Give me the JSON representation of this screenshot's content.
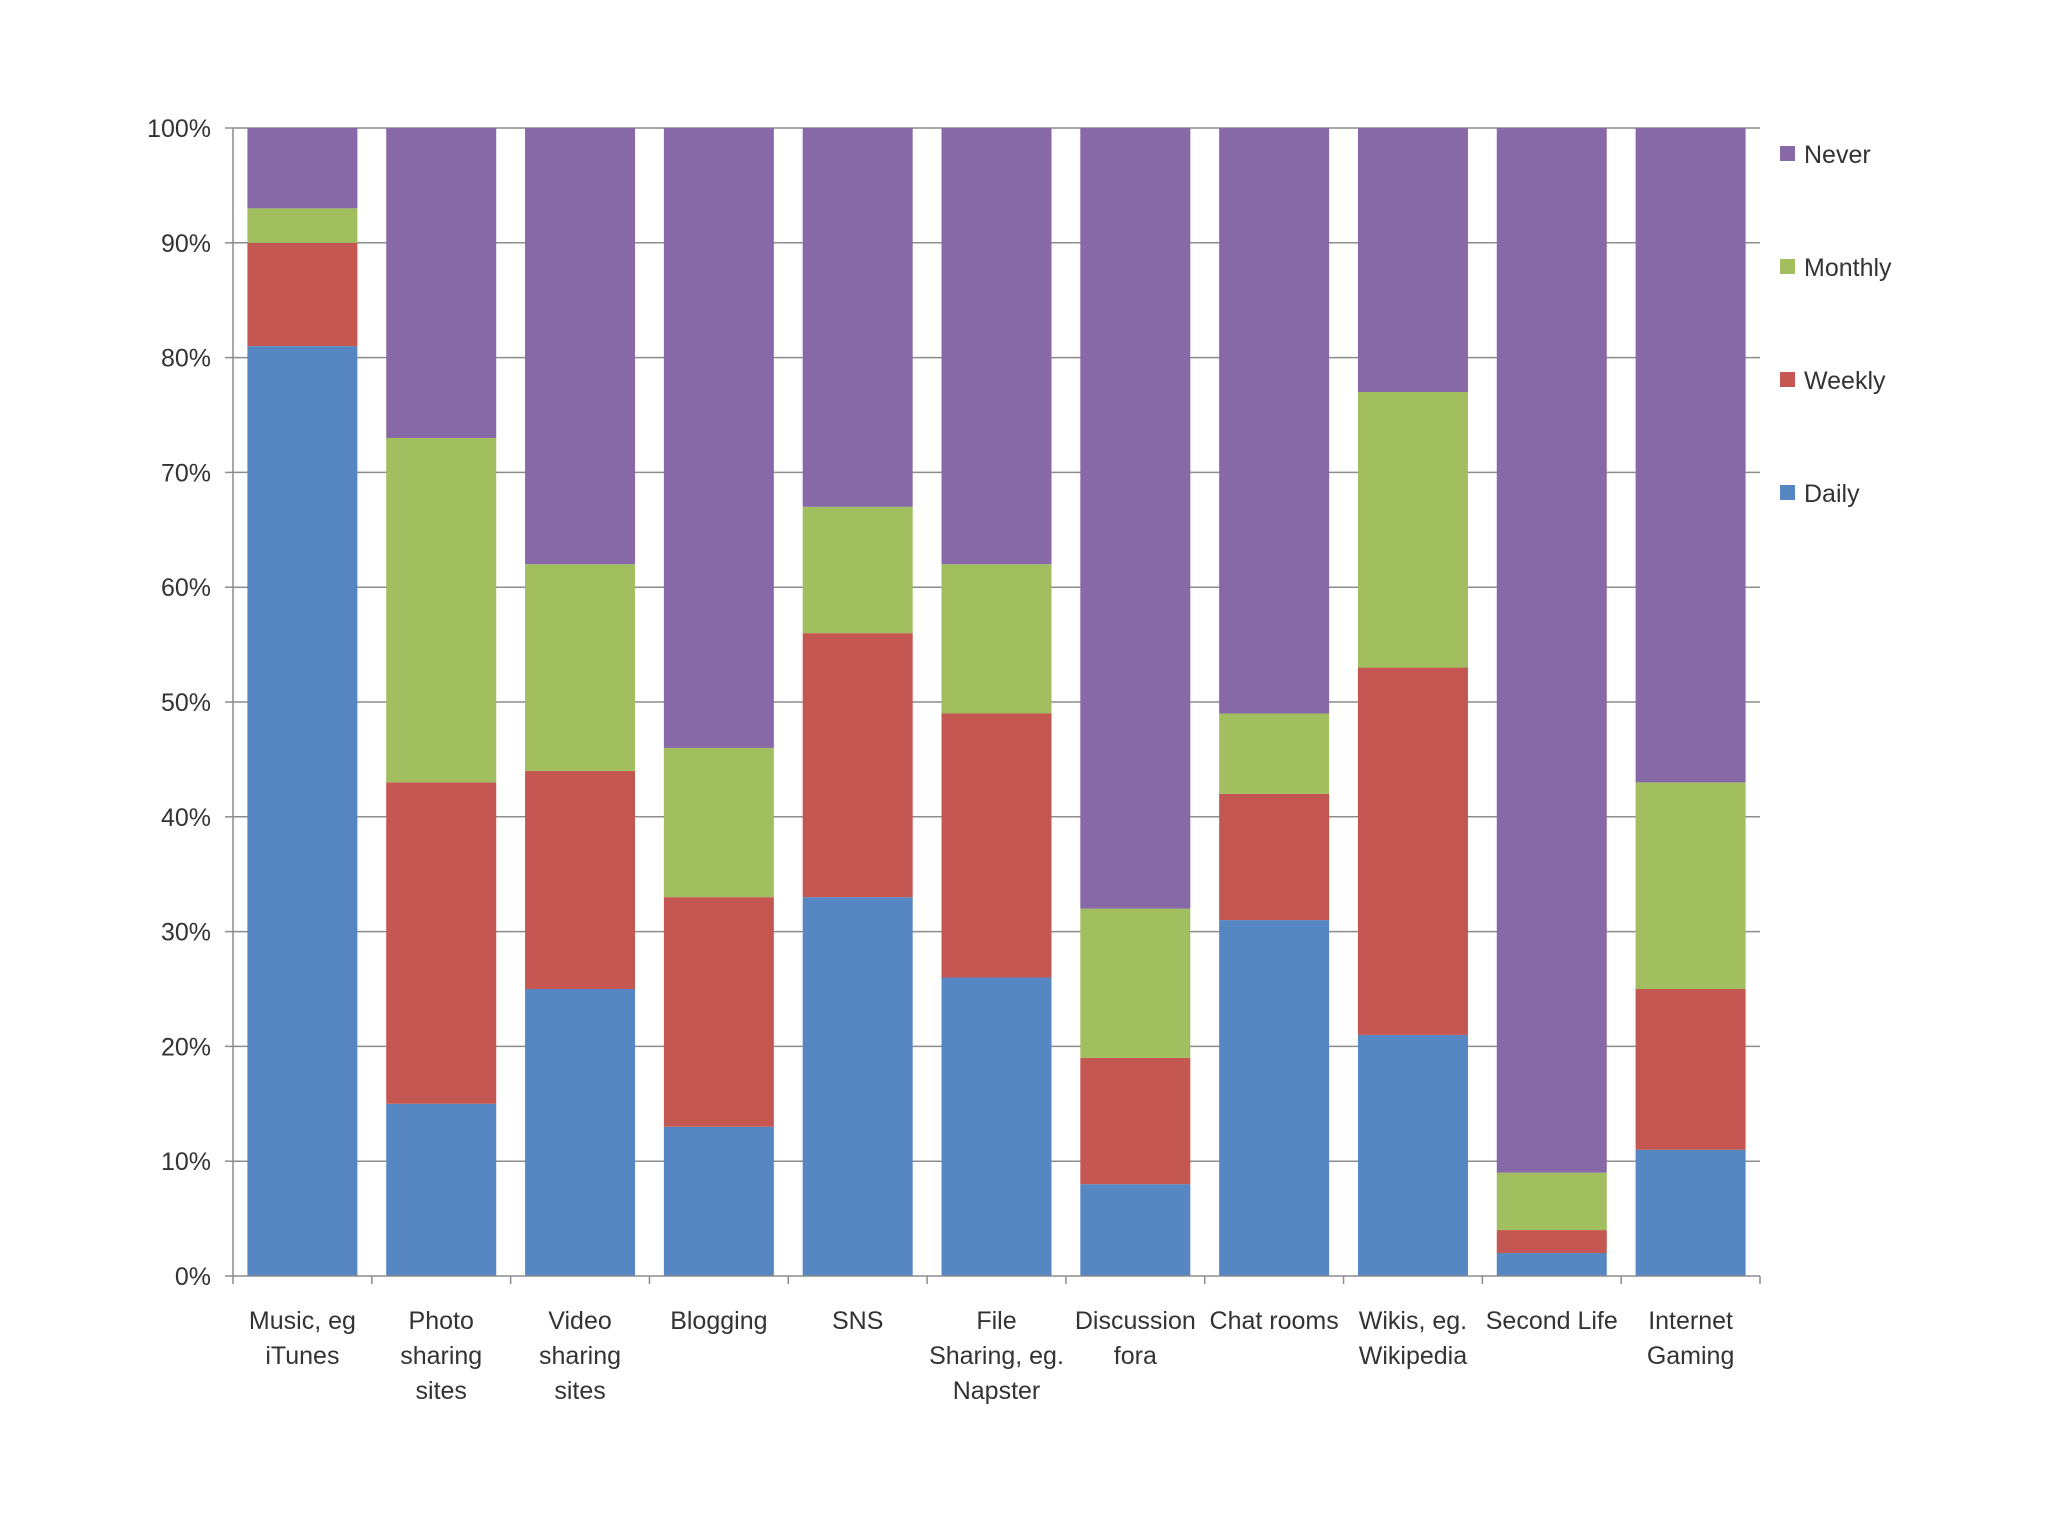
{
  "chart_data": {
    "type": "bar",
    "stacked": true,
    "title": "",
    "xlabel": "",
    "ylabel": "",
    "ylim": [
      0,
      100
    ],
    "y_ticks": [
      "0%",
      "10%",
      "20%",
      "30%",
      "40%",
      "50%",
      "60%",
      "70%",
      "80%",
      "90%",
      "100%"
    ],
    "grid": true,
    "legend_position": "right",
    "categories": [
      [
        "Music, eg",
        "iTunes"
      ],
      [
        "Photo",
        "sharing",
        "sites"
      ],
      [
        "Video",
        "sharing",
        "sites"
      ],
      [
        "Blogging"
      ],
      [
        "SNS"
      ],
      [
        "File",
        "Sharing, eg.",
        "Napster"
      ],
      [
        "Discussion",
        "fora"
      ],
      [
        "Chat rooms"
      ],
      [
        "Wikis, eg.",
        "Wikipedia"
      ],
      [
        "Second Life"
      ],
      [
        "Internet",
        "Gaming"
      ]
    ],
    "series": [
      {
        "name": "Daily",
        "color": "#5687C2",
        "values": [
          81,
          15,
          25,
          13,
          33,
          26,
          8,
          31,
          21,
          2,
          11
        ]
      },
      {
        "name": "Weekly",
        "color": "#C55752",
        "values": [
          9,
          28,
          19,
          20,
          23,
          23,
          11,
          11,
          32,
          2,
          14
        ]
      },
      {
        "name": "Monthly",
        "color": "#A1BF5F",
        "values": [
          3,
          30,
          18,
          13,
          11,
          13,
          13,
          7,
          24,
          5,
          18
        ]
      },
      {
        "name": "Never",
        "color": "#8769A7",
        "values": [
          7,
          27,
          38,
          54,
          33,
          38,
          68,
          51,
          23,
          91,
          57
        ]
      }
    ],
    "legend_order": [
      "Never",
      "Monthly",
      "Weekly",
      "Daily"
    ]
  }
}
